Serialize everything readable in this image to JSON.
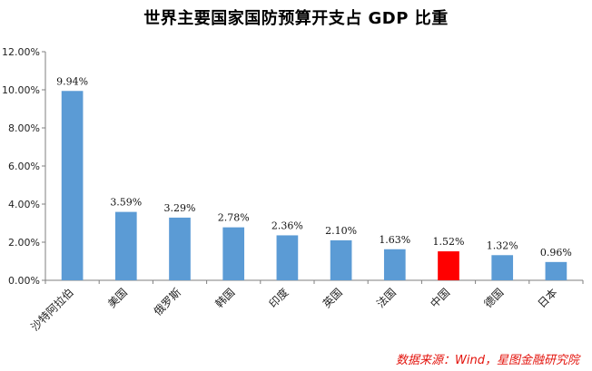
{
  "title": "世界主要国家国防预算开支占 GDP 比重",
  "source": "数据来源：Wind，星图金融研究院",
  "colors": {
    "default_bar": "#5b9bd5",
    "highlight_bar": "#ff0000",
    "axis": "#7f7f7f"
  },
  "chart_data": {
    "type": "bar",
    "categories": [
      "沙特阿拉伯",
      "美国",
      "俄罗斯",
      "韩国",
      "印度",
      "英国",
      "法国",
      "中国",
      "德国",
      "日本"
    ],
    "values": [
      9.94,
      3.59,
      3.29,
      2.78,
      2.36,
      2.1,
      1.63,
      1.52,
      1.32,
      0.96
    ],
    "data_labels": [
      "9.94%",
      "3.59%",
      "3.29%",
      "2.78%",
      "2.36%",
      "2.10%",
      "1.63%",
      "1.52%",
      "1.32%",
      "0.96%"
    ],
    "highlight_category": "中国",
    "ylim": [
      0,
      12
    ],
    "yticks": [
      0,
      2,
      4,
      6,
      8,
      10,
      12
    ],
    "ytick_labels": [
      "0.00%",
      "2.00%",
      "4.00%",
      "6.00%",
      "8.00%",
      "10.00%",
      "12.00%"
    ],
    "grid": false,
    "legend": "none",
    "xlabel": "",
    "ylabel": ""
  }
}
